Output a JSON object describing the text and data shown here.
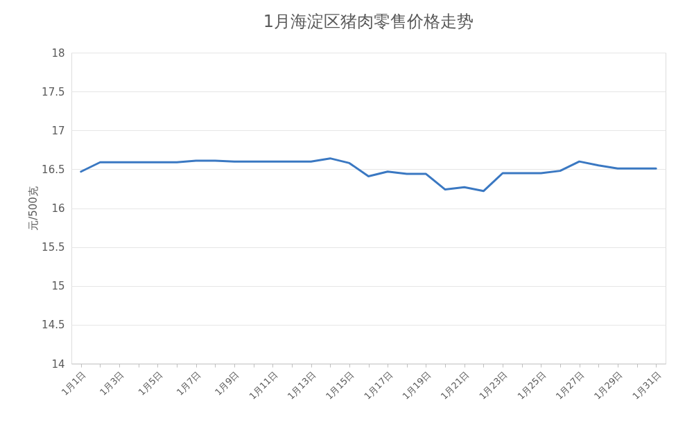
{
  "chart_data": {
    "type": "line",
    "title": "1月海淀区猪肉零售价格走势",
    "ylabel": "元/500克",
    "categories": [
      "1月1日",
      null,
      "1月3日",
      null,
      "1月5日",
      null,
      "1月7日",
      null,
      "1月9日",
      null,
      "1月11日",
      null,
      "1月13日",
      null,
      "1月15日",
      null,
      "1月17日",
      null,
      "1月19日",
      null,
      "1月21日",
      null,
      "1月23日",
      null,
      "1月25日",
      null,
      "1月27日",
      null,
      "1月29日",
      null,
      "1月31日"
    ],
    "series": [
      {
        "color": "#3a78c2",
        "values": [
          16.47,
          16.59,
          16.59,
          16.59,
          16.59,
          16.59,
          16.61,
          16.61,
          16.6,
          16.6,
          16.6,
          16.6,
          16.6,
          16.64,
          16.58,
          16.41,
          16.47,
          16.44,
          16.44,
          16.24,
          16.27,
          16.22,
          16.45,
          16.45,
          16.45,
          16.48,
          16.6,
          16.55,
          16.51,
          16.51,
          16.51
        ]
      }
    ],
    "ylim": [
      14,
      18
    ],
    "yticks": [
      14,
      14.5,
      15,
      15.5,
      16,
      16.5,
      17,
      17.5,
      18
    ],
    "grid": "y",
    "marker": "none",
    "line_style": "solid"
  }
}
